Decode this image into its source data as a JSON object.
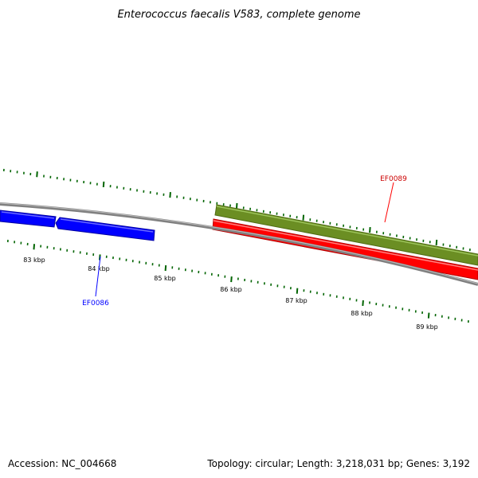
{
  "title": "Enterococcus faecalis V583, complete genome",
  "footer": {
    "accession": "Accession: NC_004668",
    "stats": "Topology: circular; Length: 3,218,031 bp; Genes: 3,192"
  },
  "colors": {
    "backbone": "#808080",
    "tick": "#006400",
    "reverse_strand": "#0000ff",
    "forward_strand": "#ff0000",
    "feature_track": "#6b8e23"
  },
  "ticks": {
    "labels": [
      "83 kbp",
      "84 kbp",
      "85 kbp",
      "86 kbp",
      "87 kbp",
      "88 kbp",
      "89 kbp"
    ]
  },
  "genes": [
    {
      "name": "EF0086",
      "strand": "reverse",
      "color": "#0000ff"
    },
    {
      "name": "EF0089",
      "strand": "forward",
      "color": "#ff0000"
    }
  ]
}
